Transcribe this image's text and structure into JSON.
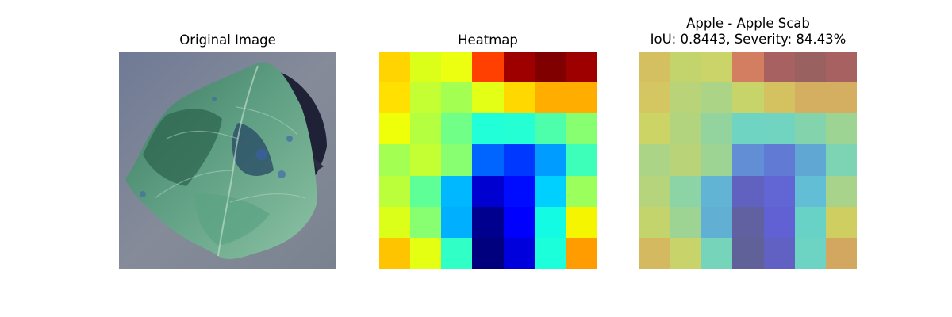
{
  "panels": {
    "original": {
      "title": "Original Image"
    },
    "heatmap": {
      "title": "Heatmap"
    },
    "overlay": {
      "title_line1": "Apple - Apple Scab",
      "title_line2": "IoU: 0.8443, Severity: 84.43%"
    }
  },
  "colors": {
    "background_gray": "#7e8595",
    "leaf_dark": "#2f5f4a",
    "leaf_mid": "#4e8f72",
    "leaf_light": "#7fbf9e",
    "shadow": "#1b1f30",
    "overlay_base": "#b0b0b0"
  },
  "heatmap_colors": [
    [
      "#ffd400",
      "#dcff1a",
      "#ecff10",
      "#ff4000",
      "#9e0000",
      "#800000",
      "#9e0000"
    ],
    [
      "#ffe000",
      "#c4ff33",
      "#a4ff53",
      "#e2ff15",
      "#ffd800",
      "#ffae00",
      "#ffae00"
    ],
    [
      "#eeff09",
      "#b5ff41",
      "#70ff87",
      "#20ffd7",
      "#24ffd3",
      "#4dffaa",
      "#87ff70"
    ],
    [
      "#a4ff53",
      "#c4ff33",
      "#87ff70",
      "#0064ff",
      "#0038ff",
      "#009cff",
      "#3dffb9"
    ],
    [
      "#bbff3b",
      "#5fff98",
      "#00b8ff",
      "#0000d1",
      "#000cff",
      "#00d0ff",
      "#9bff5c"
    ],
    [
      "#dcff1a",
      "#87ff70",
      "#00b0ff",
      "#00008e",
      "#0000ff",
      "#13fce3",
      "#f5f500"
    ],
    [
      "#ffc400",
      "#e5ff12",
      "#30ffc6",
      "#00007f",
      "#0000dc",
      "#1cffdb",
      "#ff9c00"
    ]
  ]
}
